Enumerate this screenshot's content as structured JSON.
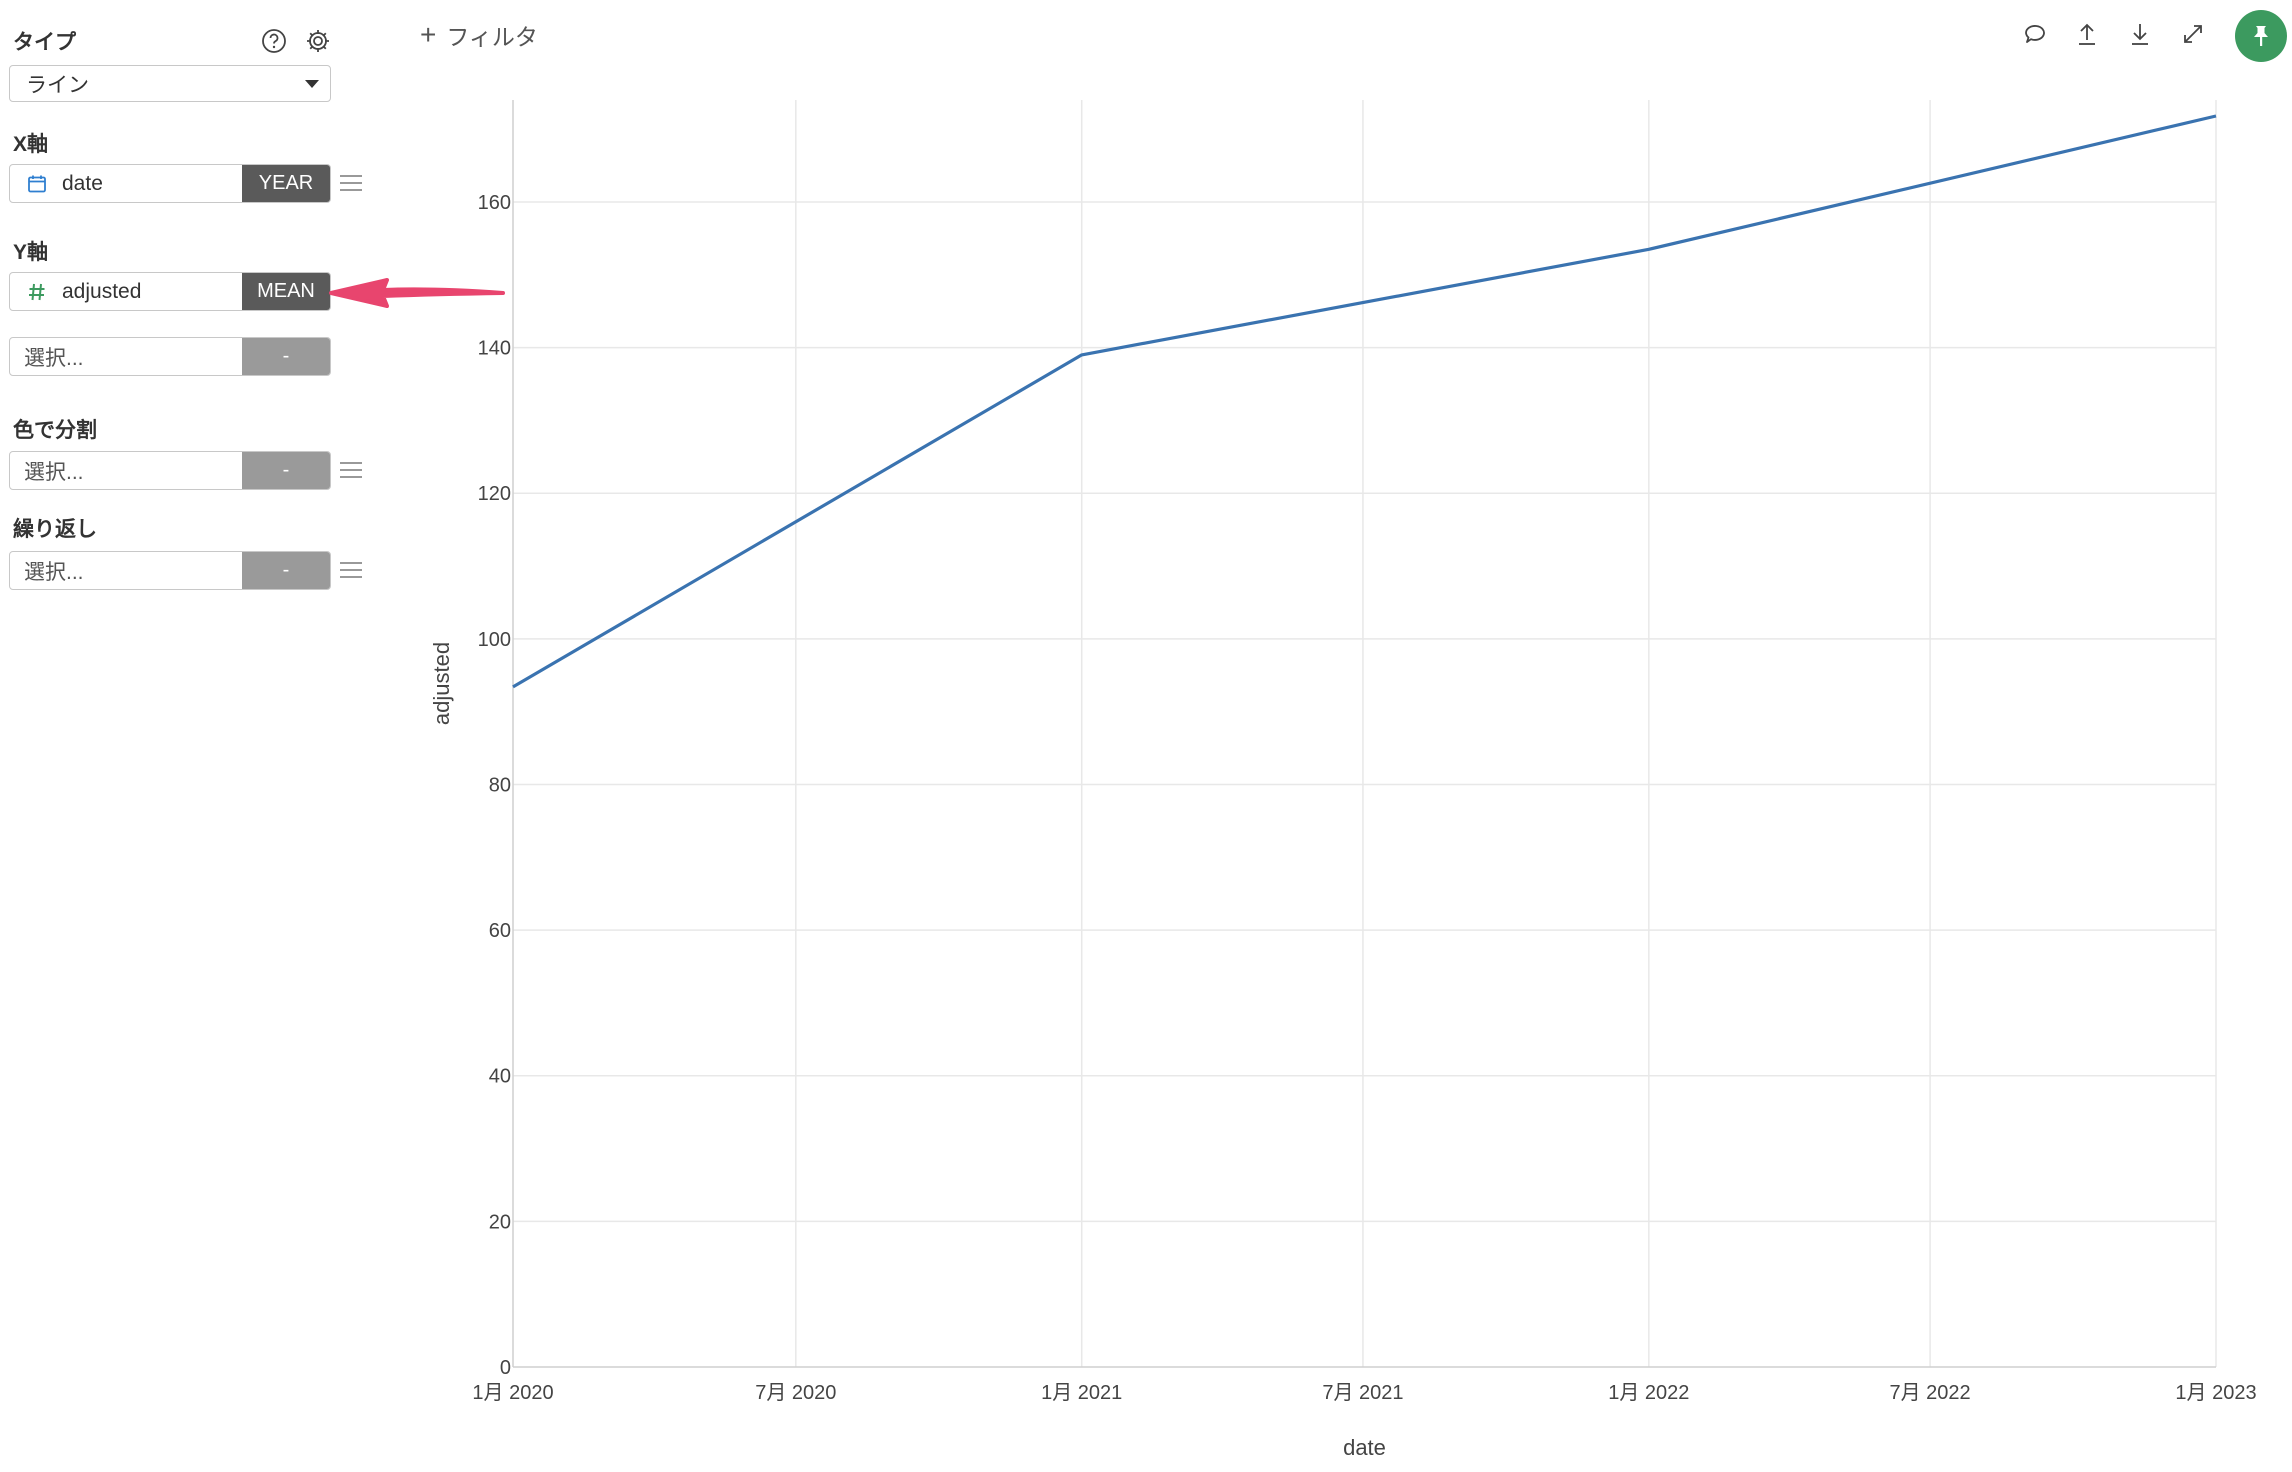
{
  "sidebar": {
    "type": {
      "label": "タイプ",
      "value": "ライン"
    },
    "x_axis": {
      "label": "X軸",
      "field": "date",
      "agg": "YEAR"
    },
    "y_axis": {
      "label": "Y軸",
      "field": "adjusted",
      "agg": "MEAN",
      "extra_placeholder": "選択...",
      "extra_agg": "-"
    },
    "color_split": {
      "label": "色で分割",
      "placeholder": "選択...",
      "agg": "-"
    },
    "repeat": {
      "label": "繰り返し",
      "placeholder": "選択...",
      "agg": "-"
    }
  },
  "toolbar": {
    "filter_label": "フィルタ"
  },
  "icons": {
    "help": "question-circle-icon",
    "settings": "gear-icon",
    "calendar": "calendar-icon",
    "number": "hash-icon",
    "comment": "comment-icon",
    "export": "upload-icon",
    "download": "download-icon",
    "expand": "expand-icon",
    "pin": "pin-icon"
  },
  "colors": {
    "line": "#3a73b0",
    "pin_button": "#3c9a5f",
    "agg_active": "#5a5a5a",
    "agg_empty": "#9a9a9a",
    "arrow": "#e8456e"
  },
  "chart_data": {
    "type": "line",
    "xlabel": "date",
    "ylabel": "adjusted",
    "x_ticks": [
      "1月 2020",
      "7月 2020",
      "1月 2021",
      "7月 2021",
      "1月 2022",
      "7月 2022",
      "1月 2023"
    ],
    "x_tick_dates": [
      "2020-01-01",
      "2020-07-01",
      "2021-01-01",
      "2021-07-01",
      "2022-01-01",
      "2022-07-01",
      "2023-01-01"
    ],
    "y_ticks": [
      0,
      20,
      40,
      60,
      80,
      100,
      120,
      140,
      160
    ],
    "ylim": [
      0,
      174
    ],
    "xlim": [
      "2020-01-01",
      "2023-01-01"
    ],
    "grid": true,
    "series": [
      {
        "x": [
          "2020-01-01",
          "2021-01-01",
          "2022-01-01",
          "2023-01-01"
        ],
        "values": [
          93.4,
          139.0,
          153.5,
          171.8
        ]
      }
    ]
  }
}
